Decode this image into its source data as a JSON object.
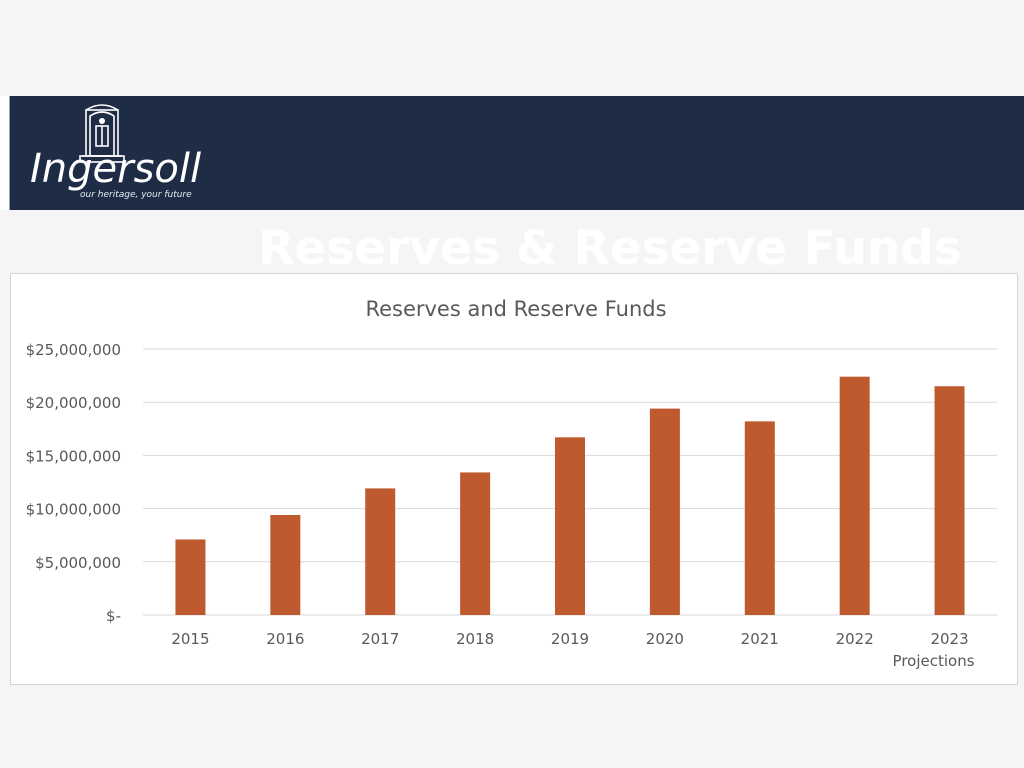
{
  "header": {
    "title": "Reserves & Reserve Funds",
    "logo_name": "Ingersoll",
    "logo_tagline": "our heritage, your future"
  },
  "colors": {
    "banner": "#1e2d45",
    "bar": "#bf5a2e",
    "grid": "#d9d9d9",
    "text": "#595959"
  },
  "chart_data": {
    "type": "bar",
    "title": "Reserves and Reserve Funds",
    "categories": [
      "2015",
      "2016",
      "2017",
      "2018",
      "2019",
      "2020",
      "2021",
      "2022",
      "2023"
    ],
    "category_sublabels": [
      "",
      "",
      "",
      "",
      "",
      "",
      "",
      "",
      "Projections"
    ],
    "values": [
      7100000,
      9400000,
      11900000,
      13400000,
      16700000,
      19400000,
      18200000,
      22400000,
      21500000
    ],
    "ylim": [
      0,
      25000000
    ],
    "yticks": [
      0,
      5000000,
      10000000,
      15000000,
      20000000,
      25000000
    ],
    "ytick_labels": [
      "$-",
      "$5,000,000",
      "$10,000,000",
      "$15,000,000",
      "$20,000,000",
      "$25,000,000"
    ],
    "xlabel": "",
    "ylabel": "",
    "grid": true,
    "legend": "none"
  }
}
